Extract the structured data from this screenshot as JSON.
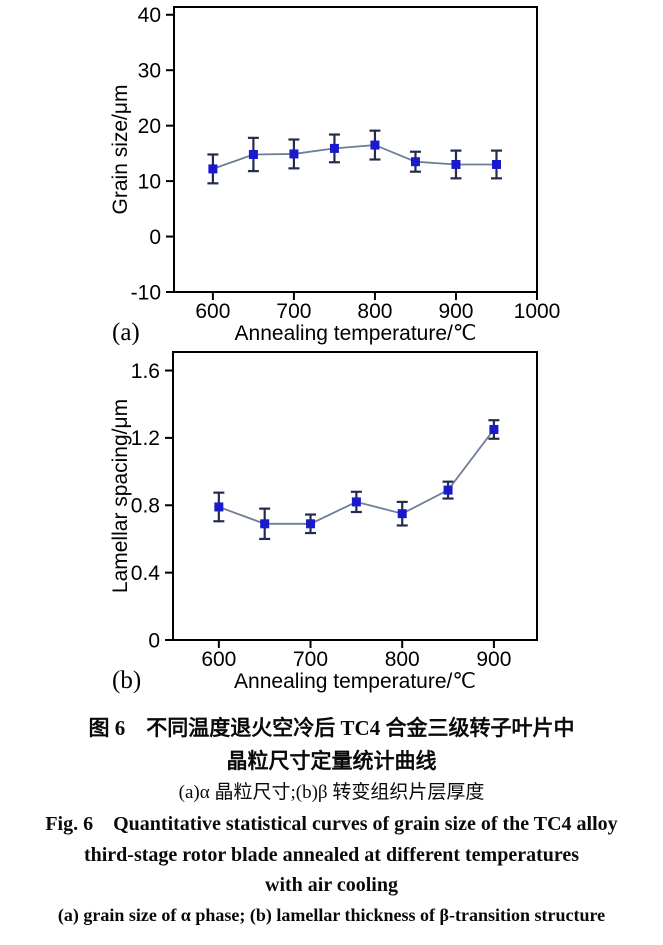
{
  "caption": {
    "zh_line1": "图 6　不同温度退火空冷后 TC4 合金三级转子叶片中",
    "zh_line2": "晶粒尺寸定量统计曲线",
    "zh_line3": "(a)α 晶粒尺寸;(b)β 转变组织片层厚度",
    "en_line1": "Fig. 6　Quantitative statistical curves of grain size of the TC4 alloy",
    "en_line2": "third-stage rotor blade annealed at different temperatures",
    "en_line3": "with air cooling",
    "en_line4": "(a) grain size of α phase; (b) lamellar thickness of β-transition structure"
  },
  "colors": {
    "marker": "#1a1acc",
    "series_line": "#6e7f96",
    "error_bar": "#232c4e",
    "axis": "#000000"
  },
  "chart_data": [
    {
      "type": "line",
      "panel_label": "(a)",
      "x": [
        600,
        650,
        700,
        750,
        800,
        850,
        900,
        950
      ],
      "values": [
        12.2,
        14.8,
        14.9,
        15.9,
        16.5,
        13.5,
        13.0,
        13.0
      ],
      "errors": [
        2.6,
        3.0,
        2.6,
        2.5,
        2.6,
        1.8,
        2.5,
        2.5
      ],
      "xlabel": "Annealing temperature/℃",
      "ylabel": "Grain size/μm",
      "xlim": [
        552,
        1000
      ],
      "ylim": [
        -10,
        41.4
      ],
      "xticks": [
        600,
        700,
        800,
        900,
        1000
      ],
      "yticks": [
        -10,
        0,
        10,
        20,
        30,
        40
      ],
      "grid": "off",
      "legend": "none"
    },
    {
      "type": "line",
      "panel_label": "(b)",
      "x": [
        600,
        650,
        700,
        750,
        800,
        850,
        900
      ],
      "values": [
        0.79,
        0.69,
        0.69,
        0.82,
        0.75,
        0.89,
        1.25
      ],
      "errors": [
        0.085,
        0.09,
        0.055,
        0.06,
        0.07,
        0.05,
        0.055
      ],
      "xlabel": "Annealing temperature/℃",
      "ylabel": "Lamellar spacing/μm",
      "xlim": [
        550,
        947
      ],
      "ylim": [
        0,
        1.71
      ],
      "xticks": [
        600,
        700,
        800,
        900
      ],
      "yticks": [
        0,
        0.4,
        0.8,
        1.2,
        1.6
      ],
      "grid": "off",
      "legend": "none"
    }
  ]
}
